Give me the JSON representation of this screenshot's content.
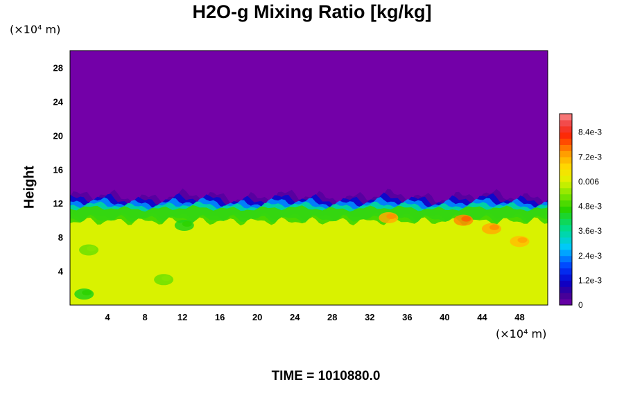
{
  "chart_data": {
    "type": "heatmap",
    "title": "H2O-g Mixing Ratio [kg/kg]",
    "ylabel": "Height",
    "x_unit": "(×10⁴ m)",
    "y_unit": "(×10⁴ m)",
    "time_label": "TIME = 1010880.0",
    "xlim": [
      0,
      51
    ],
    "ylim": [
      0,
      30
    ],
    "x_ticks": [
      "4",
      "8",
      "12",
      "16",
      "20",
      "24",
      "28",
      "32",
      "36",
      "40",
      "44",
      "48"
    ],
    "y_ticks": [
      "4",
      "8",
      "12",
      "16",
      "20",
      "24",
      "28"
    ],
    "colorbar": {
      "range": [
        0,
        0.0093
      ],
      "tick_values": [
        0,
        0.0012,
        0.0024,
        0.0036,
        0.0048,
        0.006,
        0.0072,
        0.0084
      ],
      "tick_labels": [
        "0",
        "1.2e-3",
        "2.4e-3",
        "3.6e-3",
        "4.8e-3",
        "0.006",
        "7.2e-3",
        "8.4e-3"
      ]
    },
    "regions": {
      "upper_value": 0,
      "lower_value": 0.006,
      "interface_height": 11.2,
      "interface_gradient": [
        0.0003,
        0.0012,
        0.0024,
        0.0036,
        0.0048
      ],
      "moist_patches": [
        {
          "x": 34,
          "y": 10.3,
          "value": 0.0072
        },
        {
          "x": 42,
          "y": 10.0,
          "value": 0.0075
        },
        {
          "x": 45,
          "y": 9.0,
          "value": 0.0072
        },
        {
          "x": 48,
          "y": 7.5,
          "value": 0.007
        }
      ],
      "dry_patches": [
        {
          "x": 1.5,
          "y": 1.3,
          "value": 0.0045
        },
        {
          "x": 12.2,
          "y": 9.4,
          "value": 0.0045
        },
        {
          "x": 10,
          "y": 3.0,
          "value": 0.0052
        },
        {
          "x": 2,
          "y": 6.5,
          "value": 0.0052
        }
      ]
    }
  },
  "colors": {
    "background": "#ffffff",
    "upper_field": "#7300a8",
    "lower_field": "#dff300"
  }
}
